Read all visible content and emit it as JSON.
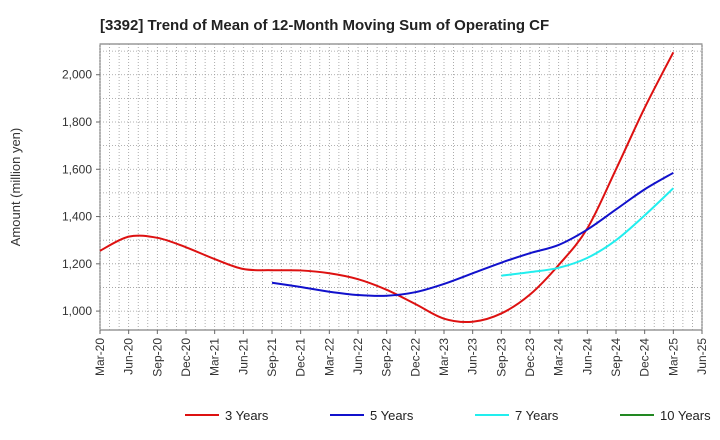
{
  "chart_data": {
    "type": "line",
    "title": "[3392]  Trend of Mean of 12-Month Moving Sum of Operating CF",
    "xlabel": "",
    "ylabel": "Amount (million yen)",
    "x": [
      "Mar-20",
      "Jun-20",
      "Sep-20",
      "Dec-20",
      "Mar-21",
      "Jun-21",
      "Sep-21",
      "Dec-21",
      "Mar-22",
      "Jun-22",
      "Sep-22",
      "Dec-22",
      "Mar-23",
      "Jun-23",
      "Sep-23",
      "Dec-23",
      "Mar-24",
      "Jun-24",
      "Sep-24",
      "Dec-24",
      "Mar-25",
      "Jun-25"
    ],
    "ylim": [
      920,
      2130
    ],
    "yticks": [
      1000,
      1200,
      1400,
      1600,
      1800,
      2000
    ],
    "ytick_labels": [
      "1,000",
      "1,200",
      "1,400",
      "1,600",
      "1,800",
      "2,000"
    ],
    "grid": true,
    "legend_position": "bottom",
    "series": [
      {
        "name": "3 Years",
        "color": "#dd1111",
        "values": [
          1255,
          1315,
          1310,
          1270,
          1220,
          1178,
          1173,
          1172,
          1160,
          1135,
          1090,
          1030,
          968,
          955,
          990,
          1070,
          1195,
          1350,
          1600,
          1860,
          2095,
          null
        ]
      },
      {
        "name": "5 Years",
        "color": "#1111cc",
        "values": [
          null,
          null,
          null,
          null,
          null,
          null,
          1120,
          1102,
          1082,
          1068,
          1065,
          1080,
          1115,
          1160,
          1205,
          1245,
          1280,
          1345,
          1430,
          1515,
          1585,
          null
        ]
      },
      {
        "name": "7 Years",
        "color": "#22eeee",
        "values": [
          null,
          null,
          null,
          null,
          null,
          null,
          null,
          null,
          null,
          null,
          null,
          null,
          null,
          null,
          1150,
          1165,
          1183,
          1225,
          1300,
          1405,
          1520,
          null
        ]
      },
      {
        "name": "10 Years",
        "color": "#228822",
        "values": [
          null,
          null,
          null,
          null,
          null,
          null,
          null,
          null,
          null,
          null,
          null,
          null,
          null,
          null,
          null,
          null,
          null,
          null,
          null,
          null,
          null,
          null
        ]
      }
    ]
  }
}
